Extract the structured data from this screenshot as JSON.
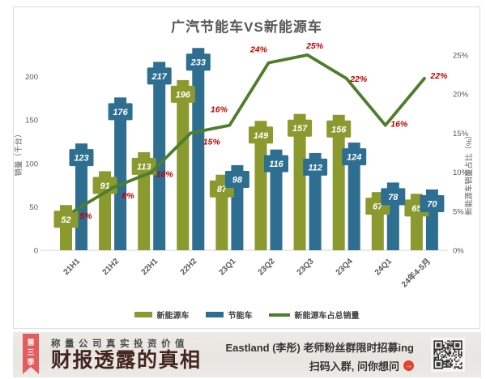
{
  "chart": {
    "title": "广汽节能车VS新能源车",
    "legend": [
      {
        "label": "新能源车",
        "type": "bar",
        "color": "#8a9a2e"
      },
      {
        "label": "节能车",
        "type": "bar",
        "color": "#2e6f91"
      },
      {
        "label": "新能源车占总销量",
        "type": "line",
        "color": "#4e7d2b"
      }
    ]
  },
  "chart_data": {
    "type": "bar+line",
    "title": "广汽节能车VS新能源车",
    "categories": [
      "21H1",
      "21H2",
      "22H1",
      "22H2",
      "23Q1",
      "23Q2",
      "23Q3",
      "23Q4",
      "24Q1",
      "24年4-5月"
    ],
    "series": [
      {
        "name": "新能源车",
        "type": "bar",
        "axis": "left",
        "color": "#8a9a2e",
        "values": [
          52,
          91,
          113,
          196,
          87,
          149,
          157,
          156,
          67,
          65
        ]
      },
      {
        "name": "节能车",
        "type": "bar",
        "axis": "left",
        "color": "#2e6f91",
        "values": [
          123,
          176,
          217,
          233,
          98,
          116,
          112,
          124,
          78,
          70
        ]
      },
      {
        "name": "新能源车占总销量",
        "type": "line",
        "axis": "right",
        "color": "#4e7d2b",
        "values": [
          5,
          8,
          10,
          15,
          16,
          24,
          25,
          22,
          16,
          22
        ],
        "unit": "%",
        "labels": [
          "5%",
          "8%",
          "10%",
          "15%",
          "16%",
          "24%",
          "25%",
          "22%",
          "16%",
          "22%"
        ],
        "label_color": "#c00000"
      }
    ],
    "y_left": {
      "label": "销量（千台）",
      "min": 0,
      "max": 250,
      "ticks": [
        0,
        50,
        100,
        150,
        200
      ]
    },
    "y_right": {
      "label": "新能源车销量占比（%）",
      "min": 0,
      "max": 25,
      "ticks": [
        0,
        5,
        10,
        15,
        20,
        25
      ],
      "tick_labels": [
        "0%",
        "5%",
        "10%",
        "15%",
        "20%",
        "25%"
      ]
    },
    "grid": false,
    "legend_position": "bottom",
    "value_labels": "inside-cap-white-italic"
  },
  "banner": {
    "ribbon": "第三季",
    "subtitle": "称量公司真实投资价值",
    "title": "财报透露的真相",
    "promo_line1": "Eastland (李彤) 老师粉丝群限时招募ing",
    "promo_line2": "扫码入群, 问你想问",
    "arrow_icon": "→",
    "qr_icon": "qr-code"
  },
  "colors": {
    "new_energy_bar": "#8a9a2e",
    "energy_saving_bar": "#2e6f91",
    "trend_line": "#4e7d2b",
    "pct_label": "#c00000",
    "axis_text": "#595959",
    "banner_bg": "#ebe8e4",
    "ribbon": "#e25d5c",
    "banner_title": "#44251f"
  }
}
